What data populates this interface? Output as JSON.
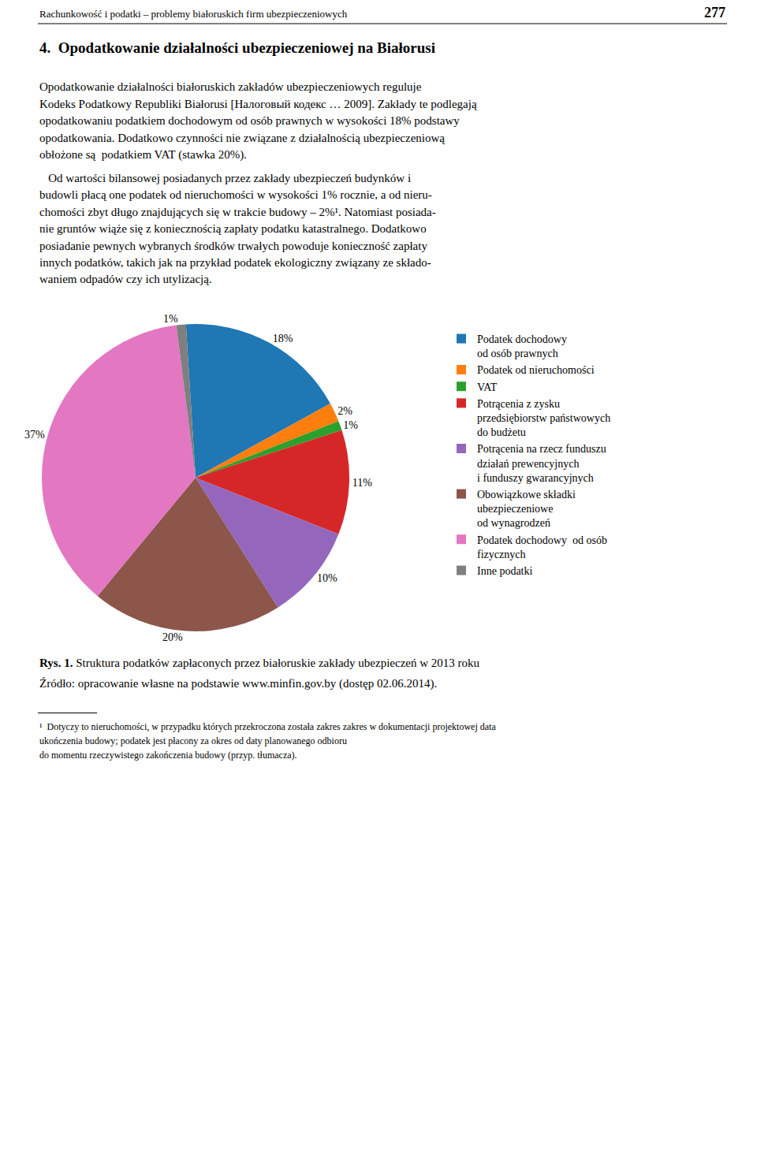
{
  "chart_data": {
    "type": "pie",
    "title": "Rys. 1.",
    "subtitle": "Struktura podatków zapłaconych przez białoruskie zakłady ubezpieczeń w 2013 roku",
    "categories": [
      "Podatek dochodowy\nod osób prawnych",
      "Podatek od nieruchomości",
      "VAT",
      "Potrącenia z zysku\nprzedsiębiorstw państwowych\ndo budżetu",
      "Potrącenia na rzecz funduszu\ndziałań prewencyjnych\ni funduszy gwarancyjnych",
      "Obowiązkowe składki\nubezpieczeniowe\nod wynagrodzeń",
      "Podatek dochodowy  od osób\nfizycznych",
      "Inne podatki"
    ],
    "values": [
      18,
      2,
      1,
      11,
      10,
      20,
      37,
      1
    ],
    "value_labels": [
      "18%",
      "2%",
      "1%",
      "11%",
      "10%",
      "20%",
      "37%",
      "1%"
    ],
    "data_labels": true,
    "annotations": [
      "Rachunkowość i podatki – problemy białoruskich firm ubezpieczeniowych",
      "277",
      "4.  Opodatkowanie działalności ubezpieczeniowej na Białorusi",
      "Opodatkowanie działalności białoruskich zakładów ubezpieczeniowych reguluje",
      "Kodeks Podatkowy Republiki Białorusi [Налоговый кодекс … 2009]. Zakłady te podlegają",
      "opodatkowaniu podatkiem dochodowym od osób prawnych w wysokości 18% podstawy",
      "opodatkowania. Dodatkowo czynności nie związane z działalnością ubezpieczeniową",
      "obłożone są  podatkiem VAT (stawka 20%).",
      "   Od wartości bilansowej posiadanych przez zakłady ubezpieczeń budynków i",
      "budowli płacą one podatek od nieruchomości w wysokości 1% rocznie, a od nieru-",
      "chomości zbyt długo znajdujących się w trakcie budowy – 2%¹. Natomiast posiada-",
      "nie gruntów wiąże się z koniecznością zapłaty podatku katastralnego. Dodatkowo",
      "posiadanie pewnych wybranych środków trwałych powoduje konieczność zapłaty",
      "innych podatków, takich jak na przykład podatek ekologiczny związany ze składo-",
      "waniem odpadów czy ich utylizacją.",
      "Źródło: opracowanie własne na podstawie www.minfin.gov.by (dostęp 02.06.2014).",
      "¹  Dotyczy to nieruchomości, w przypadku których przekroczona została zakres zakres w dokumentacji projektowej data",
      "ukończenia budowy; podatek jest płacony za okres od daty planowanego odbioru",
      "do momentu rzeczywistego zakończenia budowy (przyp. tłumacza)."
    ]
  }
}
